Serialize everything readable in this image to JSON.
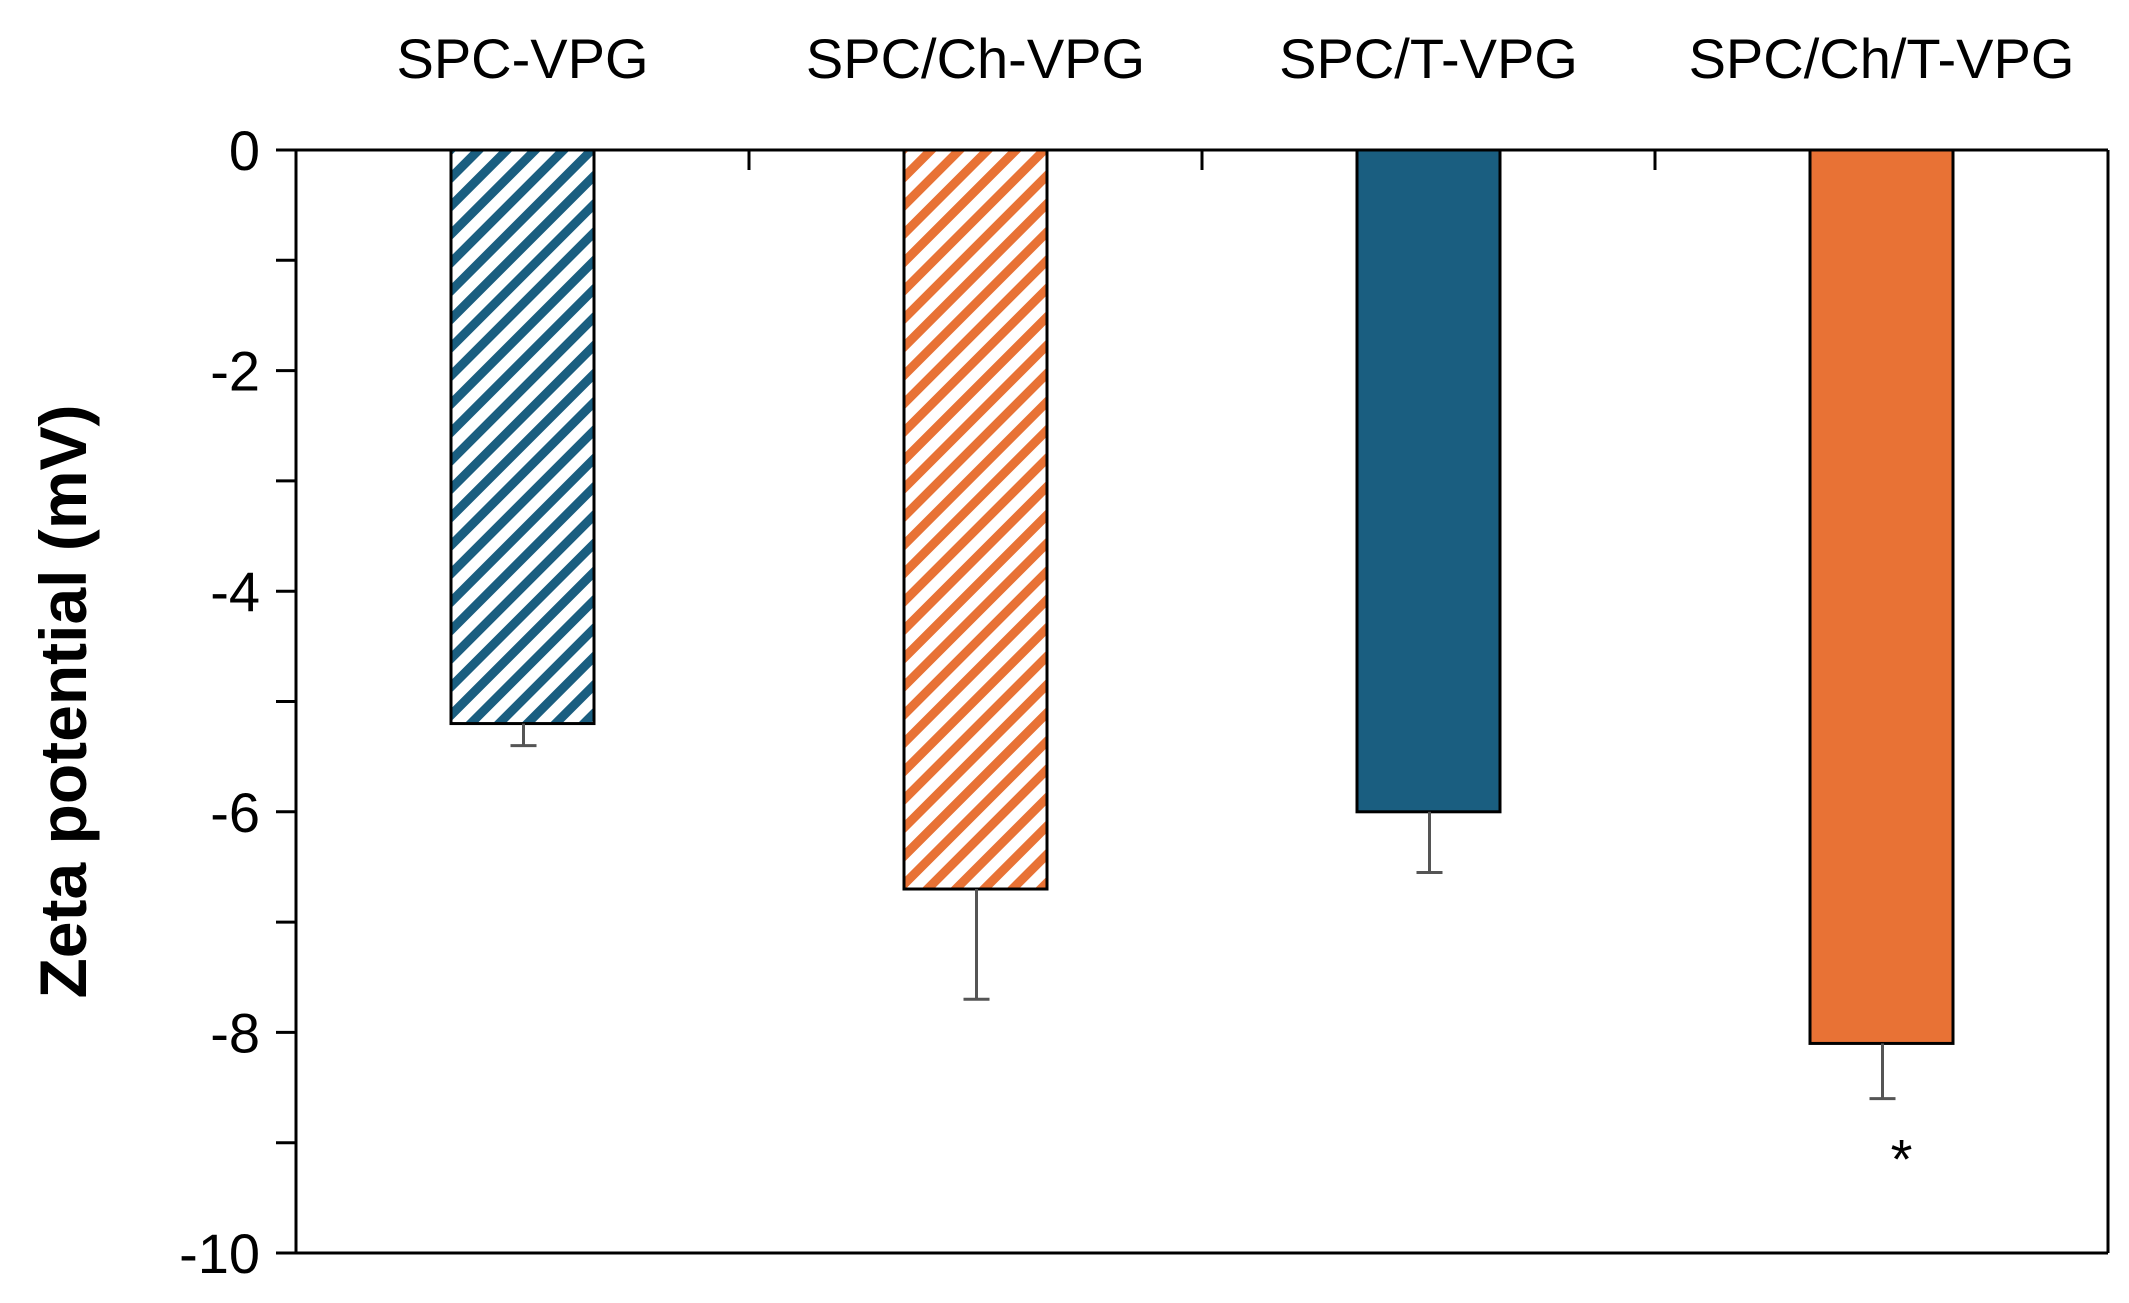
{
  "chart_data": {
    "type": "bar",
    "title": "",
    "xlabel": "",
    "ylabel": "Zeta potential (mV)",
    "ylim": [
      -10,
      0
    ],
    "yticks": [
      0,
      -2,
      -4,
      -6,
      -8,
      -10
    ],
    "ytick_labels": [
      "0",
      "-2",
      "-4",
      "-6",
      "-8",
      "-10"
    ],
    "category_axis_position": "top",
    "grid": false,
    "legend": "none",
    "categories": [
      "SPC-VPG",
      "SPC/Ch-VPG",
      "SPC/T-VPG",
      "SPC/Ch/T-VPG"
    ],
    "values": [
      -5.2,
      -6.7,
      -6.0,
      -8.1
    ],
    "errors": [
      0.2,
      1.0,
      0.55,
      0.5
    ],
    "styles": [
      "hatched",
      "hatched",
      "solid",
      "solid"
    ],
    "colors": [
      "#1a5e80",
      "#e87235",
      "#1a5e80",
      "#e87235"
    ],
    "annotations": [
      {
        "category_index": 3,
        "text": "*"
      }
    ]
  }
}
